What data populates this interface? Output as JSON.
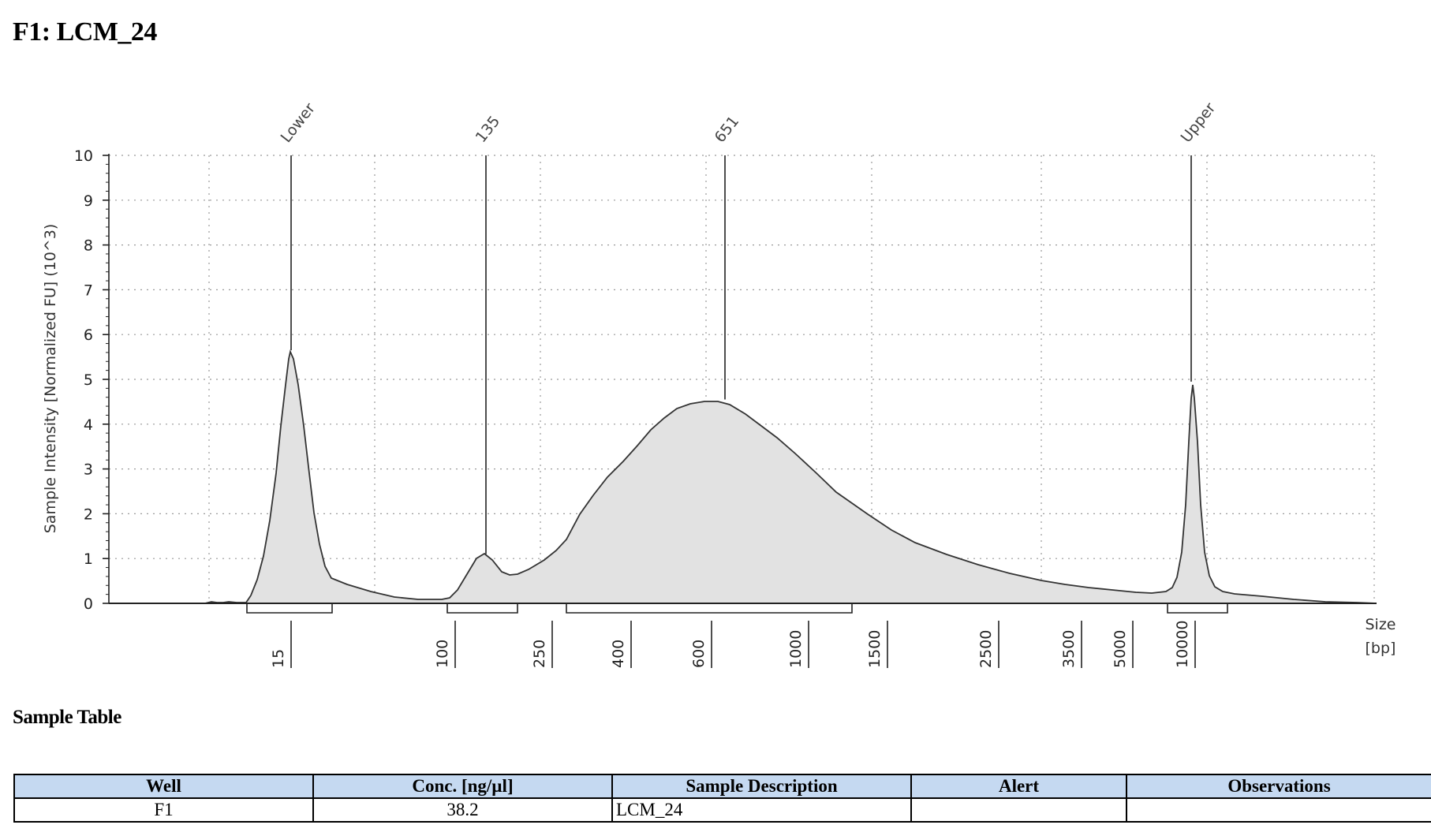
{
  "page": {
    "title": "F1: LCM_24",
    "table_heading": "Sample Table"
  },
  "chart_data": {
    "type": "area",
    "title": "",
    "ylabel": "Sample Intensity [Normalized FU] (10^3)",
    "xlabel_line1": "Size",
    "xlabel_line2": "[bp]",
    "ylim": [
      0,
      10
    ],
    "yticks": [
      "0",
      "1",
      "2",
      "3",
      "4",
      "5",
      "6",
      "7",
      "8",
      "9",
      "10"
    ],
    "x_scale": "migration time (nonlinear size ladder)",
    "x_tick_labels": [
      "15",
      "100",
      "250",
      "400",
      "600",
      "1000",
      "1500",
      "2500",
      "3500",
      "5000",
      "10000"
    ],
    "peaks": [
      {
        "label": "Lower",
        "size_bp": 15,
        "height": 5.65
      },
      {
        "label": "135",
        "size_bp": 135,
        "height": 1.1
      },
      {
        "label": "651",
        "size_bp": 651,
        "height": 4.55
      },
      {
        "label": "Upper",
        "size_bp": 10000,
        "height": 4.95
      }
    ],
    "regions": [
      {
        "from": "15",
        "to": "~35"
      },
      {
        "from": "~100",
        "to": "~250"
      },
      {
        "from": "~300",
        "to": "~1500"
      },
      {
        "from": "~9000",
        "to": "~12000"
      }
    ],
    "grid": true,
    "colors": {
      "fill": "#e2e2e2",
      "line": "#333333",
      "peak_line": "#222222"
    }
  },
  "sample_table": {
    "headers": [
      "Well",
      "Conc. [ng/µl]",
      "Sample Description",
      "Alert",
      "Observations"
    ],
    "rows": [
      [
        "F1",
        "38.2",
        "LCM_24",
        "",
        ""
      ]
    ],
    "colors": {
      "header_bg": "#c5d9f1"
    }
  }
}
